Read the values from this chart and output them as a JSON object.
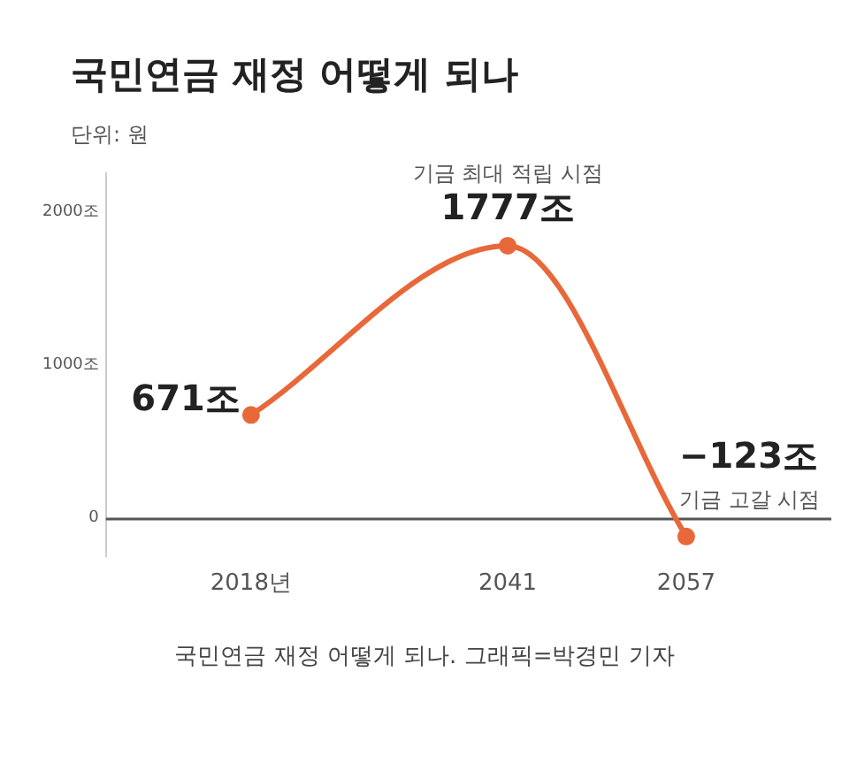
{
  "chart_data": {
    "type": "line",
    "title": "국민연금 재정 어떻게 되나",
    "subtitle": "단위: 원",
    "x": [
      2018,
      2041,
      2057
    ],
    "values": [
      671,
      1777,
      -123
    ],
    "color": "#e8683a",
    "value_labels": [
      "671조",
      "1777조",
      "−123조"
    ],
    "xlim": [
      2005,
      2070
    ],
    "xticks": [
      {
        "value": 2018,
        "label": "2018년"
      },
      2041,
      2057
    ],
    "ylim": [
      -250,
      2250
    ],
    "yticks": [
      0,
      {
        "value": 1000,
        "label": "1000조"
      },
      {
        "value": 2000,
        "label": "2000조"
      }
    ],
    "grid": false,
    "legend": false,
    "marker": "circle",
    "line_style": "solid",
    "annotations": [
      {
        "text": "기금 최대 적립 시점",
        "x": 2041,
        "y": 1777
      },
      {
        "text": "기금 고갈 시점",
        "x": 2057,
        "y": -123
      },
      "국민연금 재정 어떻게 되나. 그래픽=박경민 기자"
    ]
  }
}
